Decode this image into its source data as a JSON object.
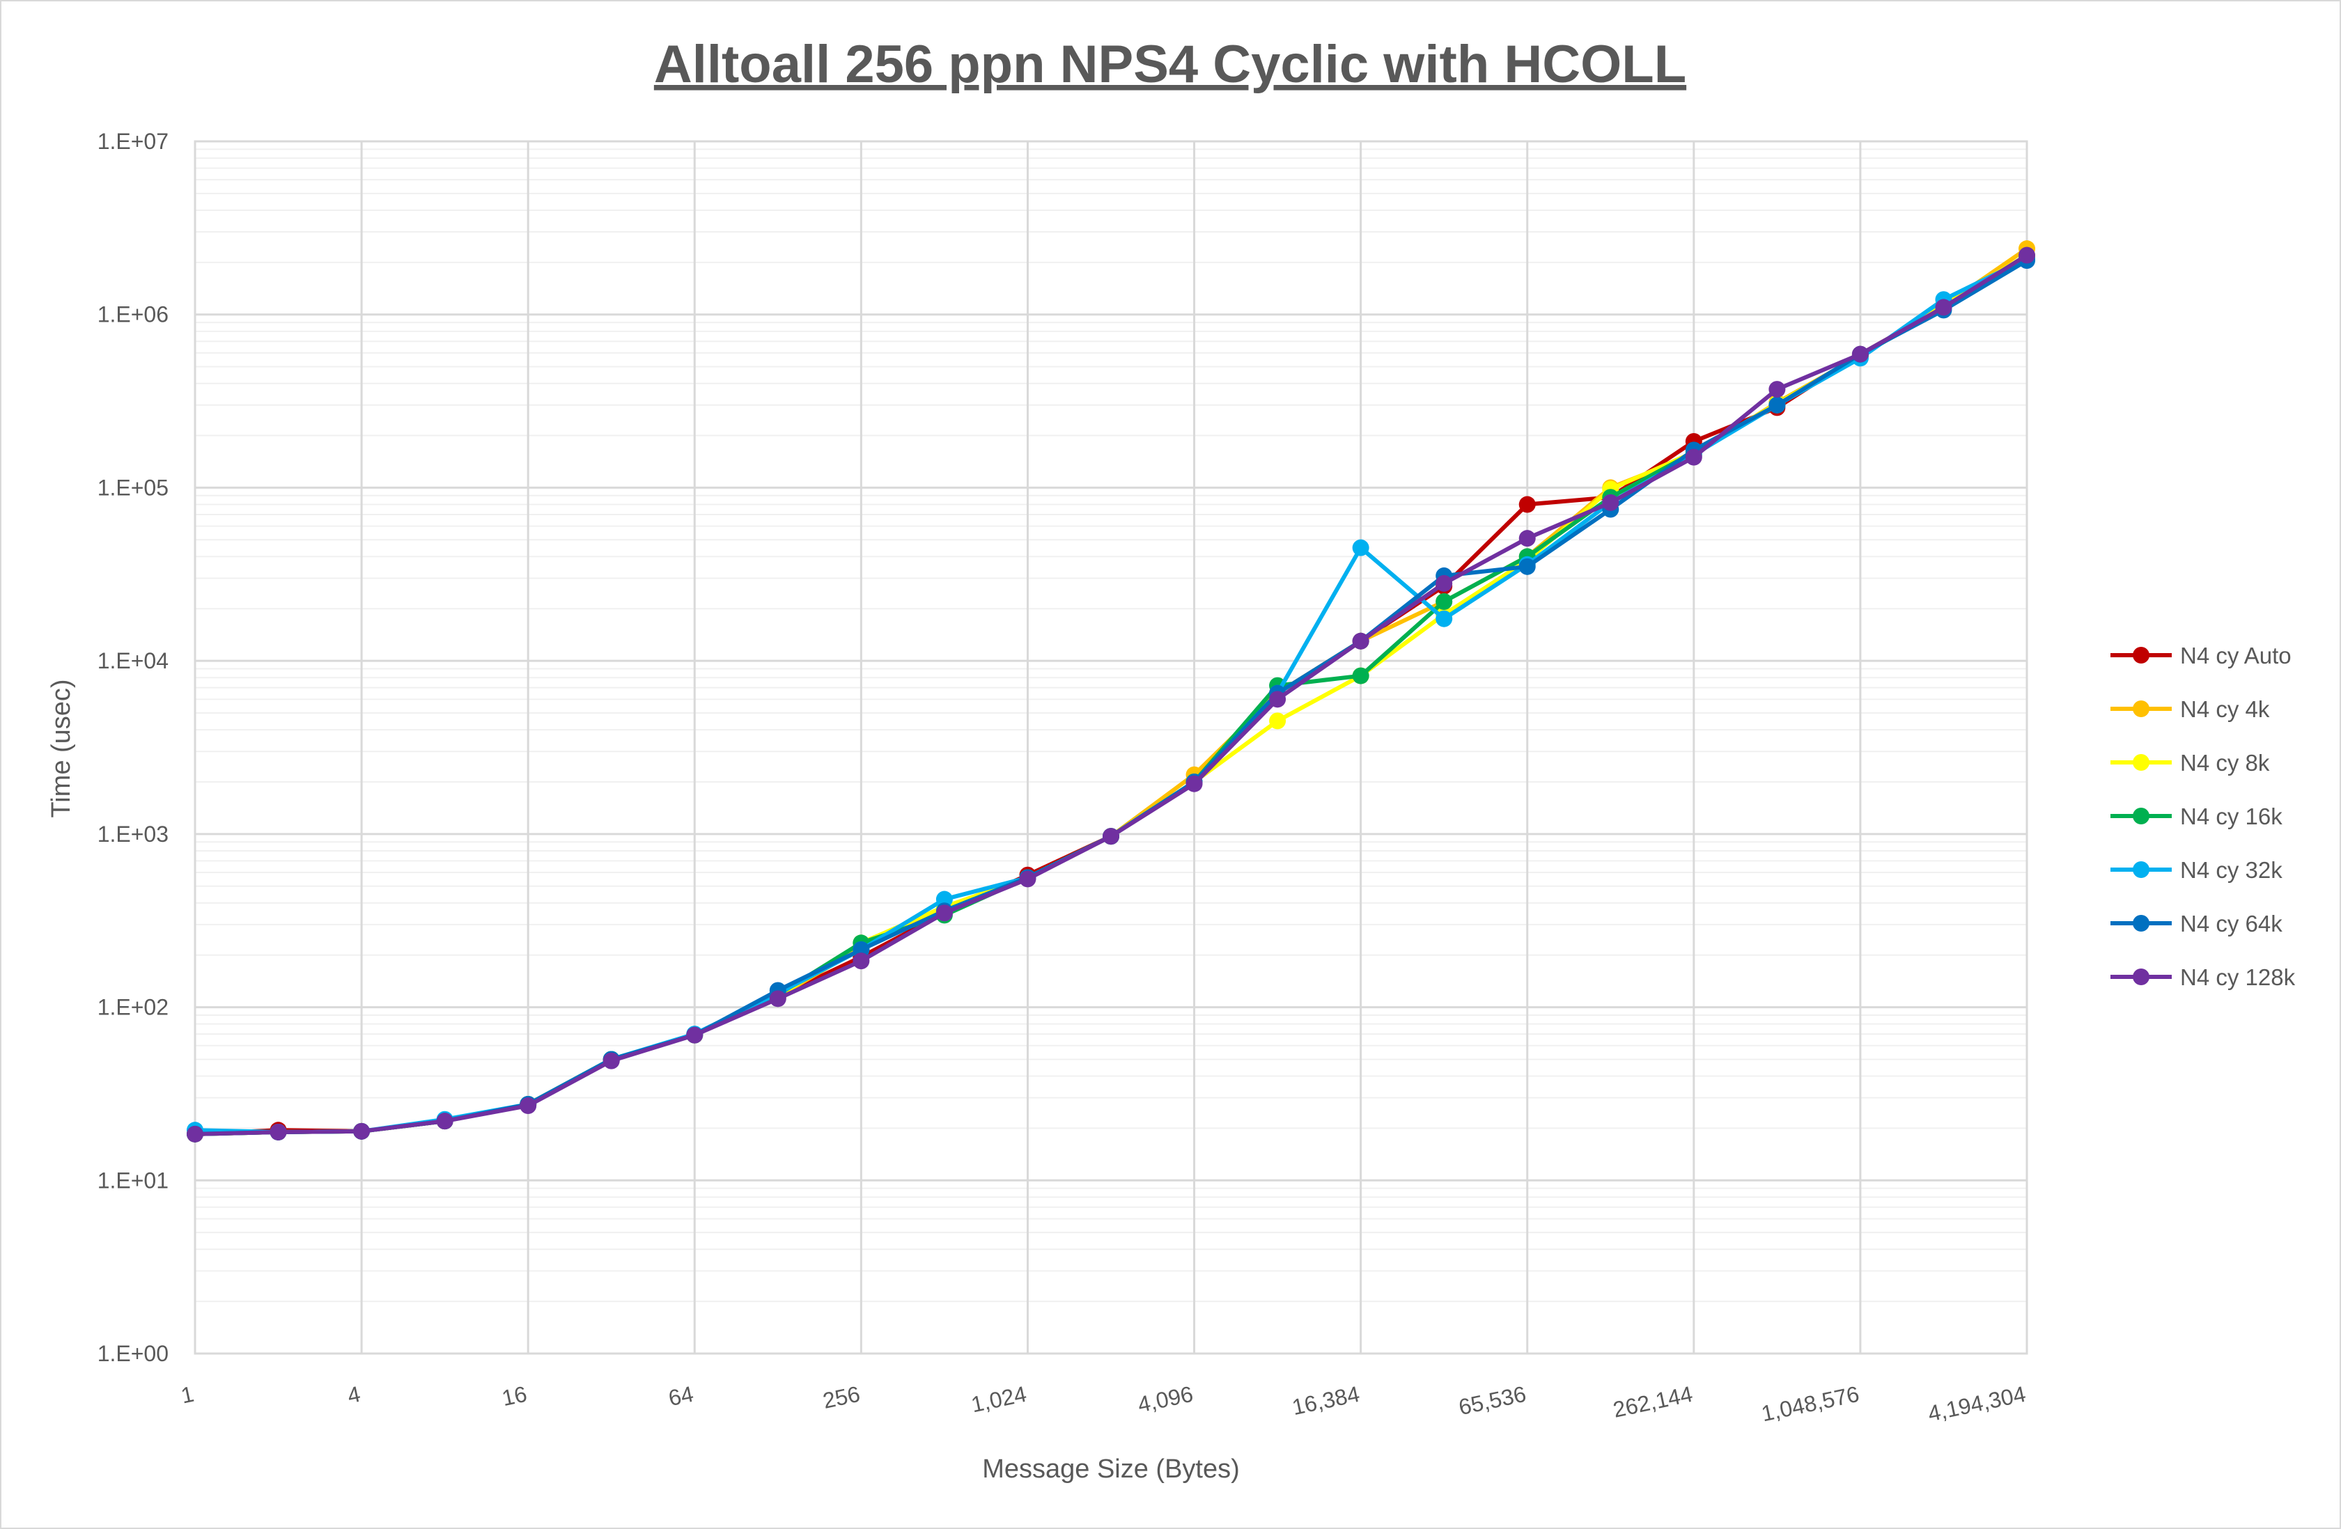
{
  "chart_data": {
    "type": "line",
    "title": "Alltoall 256 ppn NPS4 Cyclic with HCOLL",
    "xlabel": "Message Size (Bytes)",
    "ylabel": "Time (usec)",
    "x_scale": "log2",
    "y_scale": "log10",
    "x": [
      1,
      2,
      4,
      8,
      16,
      32,
      64,
      128,
      256,
      512,
      1024,
      2048,
      4096,
      8192,
      16384,
      32768,
      65536,
      131072,
      262144,
      524288,
      1048576,
      2097152,
      4194304
    ],
    "x_tick_values": [
      1,
      4,
      16,
      64,
      256,
      1024,
      4096,
      16384,
      65536,
      262144,
      1048576,
      4194304
    ],
    "x_tick_labels": [
      "1",
      "4",
      "16",
      "64",
      "256",
      "1,024",
      "4,096",
      "16,384",
      "65,536",
      "262,144",
      "1,048,576",
      "4,194,304"
    ],
    "y_tick_values": [
      1,
      10,
      100,
      1000,
      10000,
      100000,
      1000000,
      10000000
    ],
    "y_tick_labels": [
      "1.E+00",
      "1.E+01",
      "1.E+02",
      "1.E+03",
      "1.E+04",
      "1.E+05",
      "1.E+06",
      "1.E+07"
    ],
    "ylim": [
      1,
      10000000
    ],
    "grid": true,
    "legend_position": "right",
    "series": [
      {
        "name": "N4 cy Auto",
        "color": "#C00000",
        "values": [
          18.5,
          19.5,
          19.2,
          22,
          27.5,
          50,
          69,
          115,
          195,
          350,
          580,
          970,
          2000,
          6500,
          13000,
          27000,
          80000,
          88000,
          185000,
          290000,
          590000,
          1100000,
          2150000
        ]
      },
      {
        "name": "N4 cy 4k",
        "color": "#FFC000",
        "values": [
          18.5,
          19,
          19.2,
          22,
          27.5,
          50,
          69,
          115,
          220,
          360,
          560,
          970,
          2200,
          6500,
          13000,
          22000,
          40000,
          100000,
          155000,
          310000,
          580000,
          1120000,
          2400000
        ]
      },
      {
        "name": "N4 cy 8k",
        "color": "#FFFF00",
        "values": [
          18.5,
          19,
          19.2,
          22,
          27.5,
          50,
          69,
          115,
          235,
          380,
          560,
          970,
          2000,
          4500,
          8200,
          18500,
          38000,
          98000,
          160000,
          305000,
          580000,
          1140000,
          2200000
        ]
      },
      {
        "name": "N4 cy 16k",
        "color": "#00B050",
        "values": [
          18.5,
          19,
          19.2,
          22,
          27.5,
          50,
          69,
          118,
          235,
          340,
          560,
          970,
          2000,
          7200,
          8200,
          22000,
          40000,
          88000,
          160000,
          300000,
          580000,
          1100000,
          2100000
        ]
      },
      {
        "name": "N4 cy 32k",
        "color": "#00B0F0",
        "values": [
          19.5,
          19,
          19.2,
          22.5,
          27.5,
          50,
          70,
          120,
          215,
          420,
          560,
          970,
          2000,
          6500,
          45000,
          17500,
          36000,
          82000,
          155000,
          300000,
          560000,
          1220000,
          2100000
        ]
      },
      {
        "name": "N4 cy 64k",
        "color": "#0070C0",
        "values": [
          18.5,
          19,
          19.2,
          22,
          27.5,
          50,
          69,
          125,
          215,
          360,
          560,
          970,
          2000,
          6500,
          13000,
          31000,
          35000,
          75000,
          165000,
          300000,
          590000,
          1060000,
          2050000
        ]
      },
      {
        "name": "N4 cy 128k",
        "color": "#7030A0",
        "values": [
          18.5,
          19,
          19.2,
          22,
          27,
          49,
          69,
          112,
          185,
          350,
          550,
          970,
          1950,
          6000,
          13000,
          28000,
          51000,
          82000,
          150000,
          370000,
          590000,
          1100000,
          2200000
        ]
      }
    ]
  }
}
